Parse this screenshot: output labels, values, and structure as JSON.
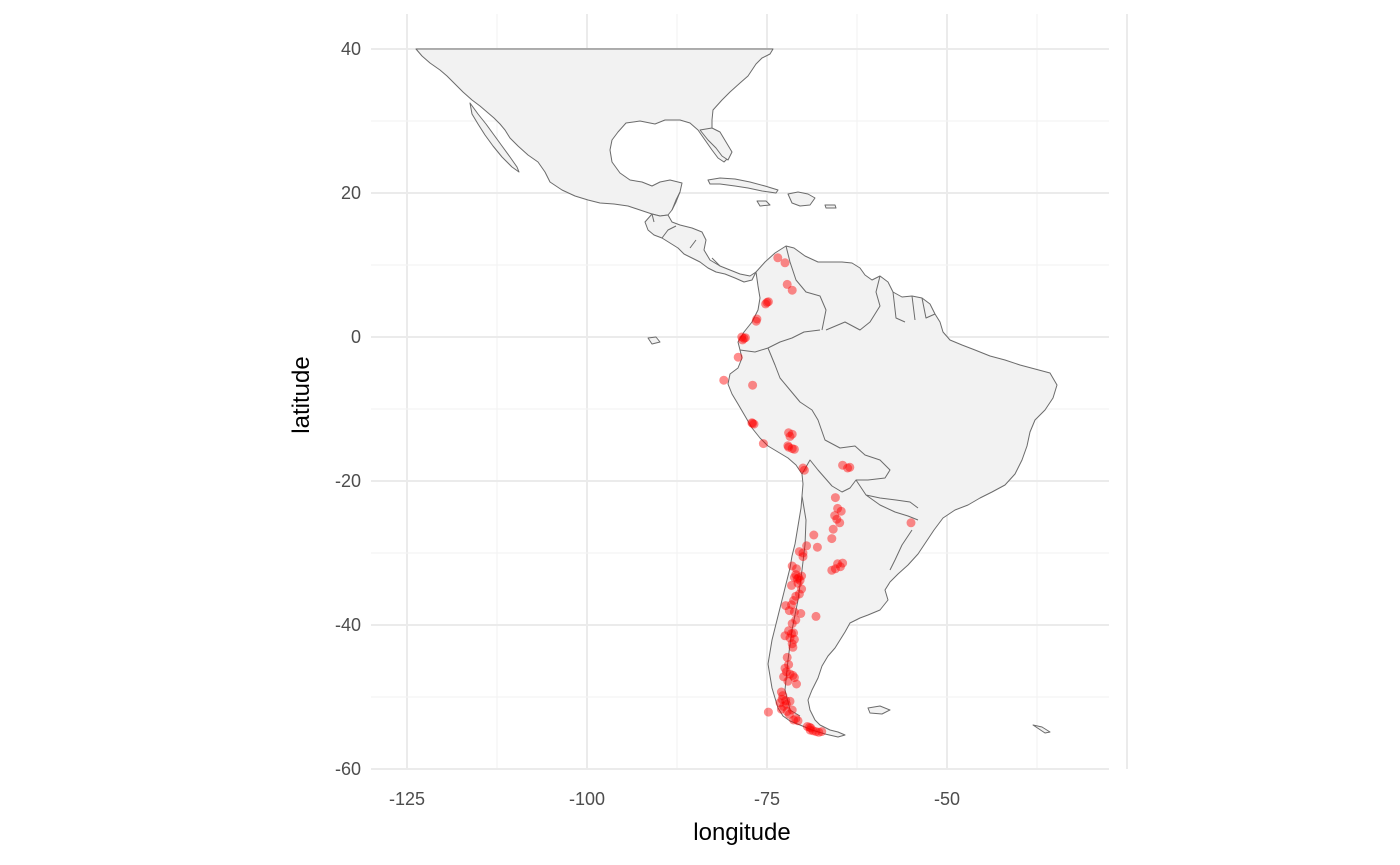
{
  "chart_data": {
    "type": "scatter",
    "title": "",
    "xlabel": "longitude",
    "ylabel": "latitude",
    "xlim": [
      -130,
      -30
    ],
    "ylim": [
      -60,
      40
    ],
    "x_ticks": [
      -125,
      -100,
      -75,
      -50
    ],
    "y_ticks": [
      40,
      20,
      0,
      -20,
      -40,
      -60
    ],
    "x_tick_labels": [
      "-125",
      "-100",
      "-75",
      "-50"
    ],
    "y_tick_labels": [
      "40",
      "20",
      "0",
      "-20",
      "-40",
      "-60"
    ],
    "grid": true,
    "basemap": "Mexico, Central America, Caribbean and South America country outlines",
    "land_fill": "#f2f2f2",
    "outline_color": "#6b6b6b",
    "point_color": "#ff0000",
    "point_opacity": 0.45,
    "points": [
      [
        -73.5,
        11
      ],
      [
        -72.5,
        10.3
      ],
      [
        -72.2,
        7.3
      ],
      [
        -71.5,
        6.5
      ],
      [
        -75,
        4.8
      ],
      [
        -75.2,
        4.6
      ],
      [
        -74.8,
        4.9
      ],
      [
        -76.5,
        2.2
      ],
      [
        -76.4,
        2.5
      ],
      [
        -78.2,
        -0.2
      ],
      [
        -78.5,
        0
      ],
      [
        -78.4,
        -0.4
      ],
      [
        -78.0,
        -0.1
      ],
      [
        -79,
        -2.8
      ],
      [
        -81,
        -6
      ],
      [
        -77,
        -6.7
      ],
      [
        -77,
        -12
      ],
      [
        -76.8,
        -12.1
      ],
      [
        -77.1,
        -11.9
      ],
      [
        -71.5,
        -13.5
      ],
      [
        -72,
        -13.3
      ],
      [
        -71.8,
        -13.8
      ],
      [
        -72,
        -15.3
      ],
      [
        -71.5,
        -15.5
      ],
      [
        -71.2,
        -15.6
      ],
      [
        -72.1,
        -15.1
      ],
      [
        -75.5,
        -14.8
      ],
      [
        -70,
        -18.2
      ],
      [
        -69.8,
        -18.5
      ],
      [
        -64.5,
        -17.8
      ],
      [
        -63.5,
        -18.1
      ],
      [
        -63.8,
        -18.2
      ],
      [
        -65.5,
        -22.3
      ],
      [
        -65.2,
        -23.8
      ],
      [
        -64.7,
        -24.2
      ],
      [
        -65.6,
        -24.8
      ],
      [
        -65.3,
        -25.3
      ],
      [
        -64.9,
        -25.8
      ],
      [
        -65.8,
        -26.7
      ],
      [
        -66,
        -28
      ],
      [
        -55,
        -25.8
      ],
      [
        -68.5,
        -27.5
      ],
      [
        -68,
        -29.2
      ],
      [
        -69.5,
        -29
      ],
      [
        -70,
        -30
      ],
      [
        -70.5,
        -29.8
      ],
      [
        -70,
        -30.5
      ],
      [
        -71.5,
        -31.8
      ],
      [
        -70.9,
        -32.2
      ],
      [
        -71,
        -33
      ],
      [
        -70.6,
        -33.4
      ],
      [
        -70.8,
        -33.6
      ],
      [
        -70.4,
        -33.8
      ],
      [
        -70.2,
        -33.2
      ],
      [
        -71.2,
        -33.4
      ],
      [
        -70.7,
        -34.2
      ],
      [
        -71.6,
        -34.5
      ],
      [
        -66,
        -32.4
      ],
      [
        -65.5,
        -32.2
      ],
      [
        -65.2,
        -31.5
      ],
      [
        -64.5,
        -31.4
      ],
      [
        -64.8,
        -31.9
      ],
      [
        -70.2,
        -35
      ],
      [
        -70.5,
        -35.7
      ],
      [
        -71,
        -36
      ],
      [
        -71.3,
        -36.6
      ],
      [
        -71.6,
        -37.2
      ],
      [
        -72.4,
        -37.3
      ],
      [
        -71.9,
        -38
      ],
      [
        -71.2,
        -38.2
      ],
      [
        -70.3,
        -38.4
      ],
      [
        -68.2,
        -38.8
      ],
      [
        -71,
        -39.3
      ],
      [
        -71.5,
        -39.8
      ],
      [
        -72,
        -40.8
      ],
      [
        -71.6,
        -41.2
      ],
      [
        -71.3,
        -41.1
      ],
      [
        -72.5,
        -41.5
      ],
      [
        -71.8,
        -41.8
      ],
      [
        -71.2,
        -42
      ],
      [
        -71.5,
        -42.6
      ],
      [
        -71.4,
        -43.1
      ],
      [
        -72.2,
        -44.5
      ],
      [
        -72,
        -45.5
      ],
      [
        -72.5,
        -46
      ],
      [
        -72.3,
        -46.5
      ],
      [
        -71.8,
        -46.8
      ],
      [
        -71.4,
        -47
      ],
      [
        -72.7,
        -47.2
      ],
      [
        -71.2,
        -47.3
      ],
      [
        -72.1,
        -47.8
      ],
      [
        -70.9,
        -48.2
      ],
      [
        -73,
        -49.3
      ],
      [
        -72.8,
        -49.8
      ],
      [
        -72.9,
        -50.3
      ],
      [
        -72.4,
        -50.5
      ],
      [
        -73.2,
        -50.8
      ],
      [
        -71.8,
        -50.6
      ],
      [
        -72.3,
        -51
      ],
      [
        -72.7,
        -51.3
      ],
      [
        -73,
        -51.7
      ],
      [
        -72.2,
        -52
      ],
      [
        -71.5,
        -51.8
      ],
      [
        -71.9,
        -52.4
      ],
      [
        -74.8,
        -52.1
      ],
      [
        -71,
        -53
      ],
      [
        -71.3,
        -53.2
      ],
      [
        -70.7,
        -53.3
      ],
      [
        -69.4,
        -54.1
      ],
      [
        -69.1,
        -54.2
      ],
      [
        -69,
        -54.6
      ],
      [
        -68.6,
        -54.7
      ],
      [
        -68.2,
        -54.8
      ],
      [
        -67.8,
        -54.9
      ],
      [
        -67.4,
        -54.8
      ],
      [
        -68.9,
        -54.3
      ]
    ]
  }
}
